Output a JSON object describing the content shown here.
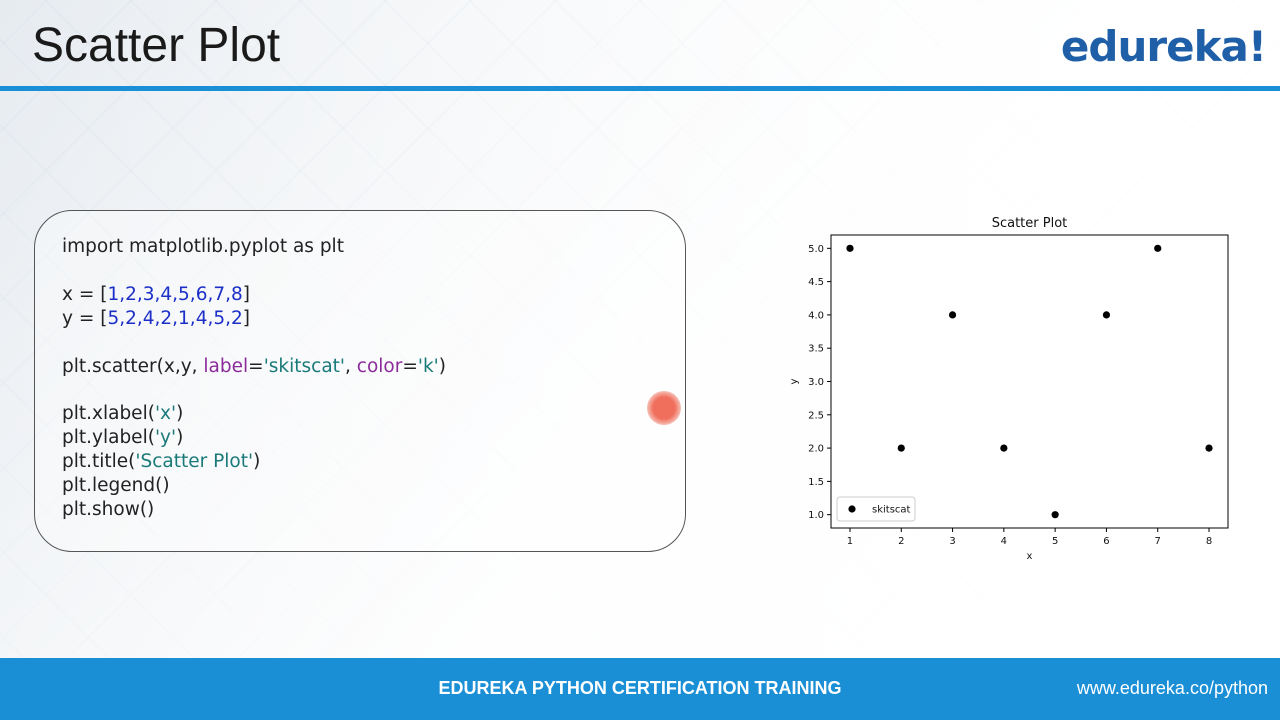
{
  "slide": {
    "title": "Scatter Plot",
    "logo": "edureka!",
    "footer_text": "EDUREKA PYTHON CERTIFICATION TRAINING",
    "footer_url": "www.edureka.co/python"
  },
  "code": {
    "line1": "import matplotlib.pyplot as plt",
    "x_prefix": "x = [",
    "x_values": "1,2,3,4,5,6,7,8",
    "y_prefix": "y = [",
    "y_values": "5,2,4,2,1,4,5,2",
    "close_bracket": "]",
    "scatter_call": "plt.scatter(x,y, ",
    "label_kw": "label",
    "eq1": "=",
    "label_val": "'skitscat'",
    "comma": ", ",
    "color_kw": "color",
    "eq2": "=",
    "color_val": "'k'",
    "close_paren": ")",
    "xlabel_call": "plt.xlabel(",
    "xlabel_arg": "'x'",
    "ylabel_call": "plt.ylabel(",
    "ylabel_arg": "'y'",
    "title_call": "plt.title(",
    "title_arg": "'Scatter Plot'",
    "legend_call": "plt.legend()",
    "show_call": "plt.show()"
  },
  "colors": {
    "accent": "#1b8fd6",
    "logo": "#1f5fa8",
    "marker": "#000000"
  },
  "chart_data": {
    "type": "scatter",
    "title": "Scatter Plot",
    "xlabel": "x",
    "ylabel": "y",
    "series": [
      {
        "name": "skitscat",
        "x": [
          1,
          2,
          3,
          4,
          5,
          6,
          7,
          8
        ],
        "y": [
          5,
          2,
          4,
          2,
          1,
          4,
          5,
          2
        ]
      }
    ],
    "xticks": [
      "1",
      "2",
      "3",
      "4",
      "5",
      "6",
      "7",
      "8"
    ],
    "yticks": [
      "1.0",
      "1.5",
      "2.0",
      "2.5",
      "3.0",
      "3.5",
      "4.0",
      "4.5",
      "5.0"
    ],
    "xlim": [
      0.63,
      8.37
    ],
    "ylim": [
      0.8,
      5.2
    ],
    "legend_position": "lower-left",
    "grid": false
  }
}
